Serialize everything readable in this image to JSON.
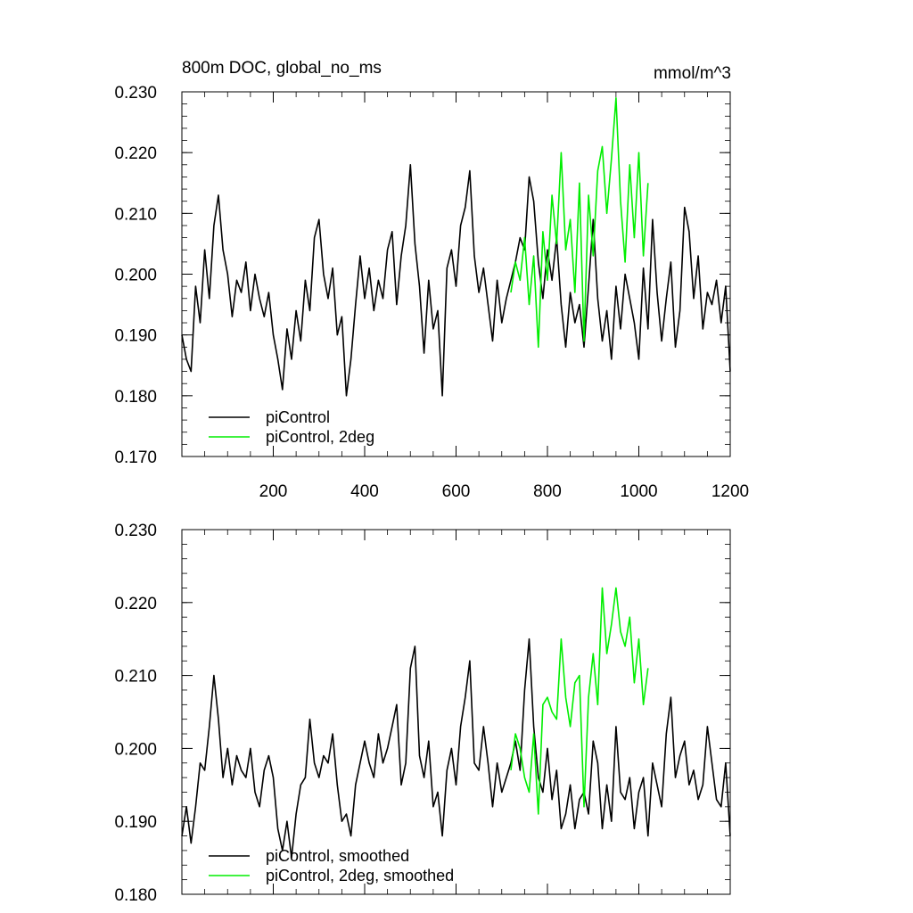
{
  "chart_data": [
    {
      "type": "line",
      "title": "800m DOC, global_no_ms",
      "units": "mmol/m^3",
      "xlim": [
        0,
        1200
      ],
      "ylim": [
        0.17,
        0.23
      ],
      "xticks": [
        200,
        400,
        600,
        800,
        1000,
        1200
      ],
      "xtick_labels": [
        "200",
        "400",
        "600",
        "800",
        "1000",
        "1200"
      ],
      "yticks": [
        0.17,
        0.18,
        0.19,
        0.2,
        0.21,
        0.22,
        0.23
      ],
      "ytick_labels": [
        "0.170",
        "0.180",
        "0.190",
        "0.200",
        "0.210",
        "0.220",
        "0.230"
      ],
      "legend_placement": "bottom-left",
      "series": [
        {
          "name": "piControl",
          "color": "#000000",
          "x": [
            0,
            10,
            20,
            30,
            40,
            50,
            60,
            70,
            80,
            90,
            100,
            110,
            120,
            130,
            140,
            150,
            160,
            170,
            180,
            190,
            200,
            210,
            220,
            230,
            240,
            250,
            260,
            270,
            280,
            290,
            300,
            310,
            320,
            330,
            340,
            350,
            360,
            370,
            380,
            390,
            400,
            410,
            420,
            430,
            440,
            450,
            460,
            470,
            480,
            490,
            500,
            510,
            520,
            530,
            540,
            550,
            560,
            570,
            580,
            590,
            600,
            610,
            620,
            630,
            640,
            650,
            660,
            670,
            680,
            690,
            700,
            710,
            720,
            730,
            740,
            750,
            760,
            770,
            780,
            790,
            800,
            810,
            820,
            830,
            840,
            850,
            860,
            870,
            880,
            890,
            900,
            910,
            920,
            930,
            940,
            950,
            960,
            970,
            980,
            990,
            1000,
            1010,
            1020,
            1030,
            1040,
            1050,
            1060,
            1070,
            1080,
            1090,
            1100,
            1110,
            1120,
            1130,
            1140,
            1150,
            1160,
            1170,
            1180,
            1190,
            1200
          ],
          "values": [
            0.19,
            0.186,
            0.184,
            0.198,
            0.192,
            0.204,
            0.196,
            0.208,
            0.213,
            0.204,
            0.2,
            0.193,
            0.199,
            0.197,
            0.202,
            0.194,
            0.2,
            0.196,
            0.193,
            0.197,
            0.19,
            0.186,
            0.181,
            0.191,
            0.186,
            0.194,
            0.189,
            0.199,
            0.194,
            0.206,
            0.209,
            0.2,
            0.196,
            0.201,
            0.19,
            0.193,
            0.18,
            0.186,
            0.195,
            0.203,
            0.196,
            0.201,
            0.194,
            0.199,
            0.196,
            0.204,
            0.207,
            0.195,
            0.203,
            0.208,
            0.218,
            0.205,
            0.198,
            0.187,
            0.199,
            0.191,
            0.194,
            0.18,
            0.201,
            0.204,
            0.198,
            0.208,
            0.211,
            0.217,
            0.203,
            0.197,
            0.201,
            0.195,
            0.189,
            0.199,
            0.192,
            0.196,
            0.199,
            0.202,
            0.206,
            0.204,
            0.216,
            0.212,
            0.202,
            0.196,
            0.204,
            0.199,
            0.206,
            0.195,
            0.188,
            0.197,
            0.192,
            0.195,
            0.188,
            0.198,
            0.209,
            0.196,
            0.189,
            0.194,
            0.186,
            0.198,
            0.191,
            0.2,
            0.196,
            0.192,
            0.186,
            0.201,
            0.191,
            0.209,
            0.197,
            0.189,
            0.196,
            0.202,
            0.188,
            0.194,
            0.211,
            0.207,
            0.196,
            0.203,
            0.191,
            0.197,
            0.195,
            0.199,
            0.192,
            0.198,
            0.184
          ]
        },
        {
          "name": "piControl, 2deg",
          "color": "#00ee00",
          "x": [
            720,
            730,
            740,
            750,
            760,
            770,
            780,
            790,
            800,
            810,
            820,
            830,
            840,
            850,
            860,
            870,
            880,
            890,
            900,
            910,
            920,
            930,
            940,
            950,
            960,
            970,
            980,
            990,
            1000,
            1010,
            1020
          ],
          "values": [
            0.197,
            0.202,
            0.199,
            0.206,
            0.195,
            0.203,
            0.188,
            0.207,
            0.199,
            0.213,
            0.205,
            0.22,
            0.204,
            0.209,
            0.197,
            0.215,
            0.189,
            0.213,
            0.203,
            0.217,
            0.221,
            0.21,
            0.219,
            0.229,
            0.212,
            0.202,
            0.218,
            0.206,
            0.22,
            0.203,
            0.215
          ]
        }
      ]
    },
    {
      "type": "line",
      "xlim": [
        0,
        1200
      ],
      "ylim": [
        0.18,
        0.23
      ],
      "yticks": [
        0.18,
        0.19,
        0.2,
        0.21,
        0.22,
        0.23
      ],
      "ytick_labels": [
        "0.180",
        "0.190",
        "0.200",
        "0.210",
        "0.220",
        "0.230"
      ],
      "legend_placement": "bottom-left",
      "series": [
        {
          "name": "piControl, smoothed",
          "color": "#000000",
          "x": [
            0,
            10,
            20,
            30,
            40,
            50,
            60,
            70,
            80,
            90,
            100,
            110,
            120,
            130,
            140,
            150,
            160,
            170,
            180,
            190,
            200,
            210,
            220,
            230,
            240,
            250,
            260,
            270,
            280,
            290,
            300,
            310,
            320,
            330,
            340,
            350,
            360,
            370,
            380,
            390,
            400,
            410,
            420,
            430,
            440,
            450,
            460,
            470,
            480,
            490,
            500,
            510,
            520,
            530,
            540,
            550,
            560,
            570,
            580,
            590,
            600,
            610,
            620,
            630,
            640,
            650,
            660,
            670,
            680,
            690,
            700,
            710,
            720,
            730,
            740,
            750,
            760,
            770,
            780,
            790,
            800,
            810,
            820,
            830,
            840,
            850,
            860,
            870,
            880,
            890,
            900,
            910,
            920,
            930,
            940,
            950,
            960,
            970,
            980,
            990,
            1000,
            1010,
            1020,
            1030,
            1040,
            1050,
            1060,
            1070,
            1080,
            1090,
            1100,
            1110,
            1120,
            1130,
            1140,
            1150,
            1160,
            1170,
            1180,
            1190,
            1200
          ],
          "values": [
            0.188,
            0.192,
            0.187,
            0.192,
            0.198,
            0.197,
            0.203,
            0.21,
            0.204,
            0.196,
            0.2,
            0.195,
            0.199,
            0.197,
            0.196,
            0.2,
            0.194,
            0.192,
            0.197,
            0.199,
            0.196,
            0.189,
            0.186,
            0.19,
            0.185,
            0.191,
            0.195,
            0.196,
            0.204,
            0.198,
            0.196,
            0.199,
            0.198,
            0.202,
            0.195,
            0.19,
            0.191,
            0.188,
            0.195,
            0.198,
            0.201,
            0.198,
            0.196,
            0.202,
            0.198,
            0.2,
            0.203,
            0.206,
            0.195,
            0.198,
            0.211,
            0.214,
            0.199,
            0.196,
            0.201,
            0.192,
            0.194,
            0.188,
            0.197,
            0.2,
            0.195,
            0.203,
            0.207,
            0.212,
            0.198,
            0.197,
            0.203,
            0.198,
            0.192,
            0.198,
            0.194,
            0.196,
            0.198,
            0.201,
            0.197,
            0.208,
            0.215,
            0.203,
            0.196,
            0.194,
            0.2,
            0.193,
            0.197,
            0.189,
            0.191,
            0.195,
            0.189,
            0.193,
            0.194,
            0.191,
            0.201,
            0.198,
            0.189,
            0.195,
            0.19,
            0.203,
            0.194,
            0.193,
            0.196,
            0.189,
            0.194,
            0.196,
            0.188,
            0.198,
            0.195,
            0.192,
            0.202,
            0.207,
            0.196,
            0.199,
            0.201,
            0.195,
            0.197,
            0.193,
            0.195,
            0.203,
            0.198,
            0.193,
            0.192,
            0.198,
            0.188
          ]
        },
        {
          "name": "piControl, 2deg, smoothed",
          "color": "#00ee00",
          "x": [
            720,
            730,
            740,
            750,
            760,
            770,
            780,
            790,
            800,
            810,
            820,
            830,
            840,
            850,
            860,
            870,
            880,
            890,
            900,
            910,
            920,
            930,
            940,
            950,
            960,
            970,
            980,
            990,
            1000,
            1010,
            1020
          ],
          "values": [
            0.197,
            0.202,
            0.2,
            0.196,
            0.194,
            0.202,
            0.191,
            0.206,
            0.207,
            0.205,
            0.204,
            0.215,
            0.207,
            0.203,
            0.209,
            0.21,
            0.192,
            0.207,
            0.213,
            0.206,
            0.222,
            0.213,
            0.217,
            0.222,
            0.216,
            0.214,
            0.218,
            0.209,
            0.215,
            0.206,
            0.211
          ]
        }
      ]
    }
  ]
}
